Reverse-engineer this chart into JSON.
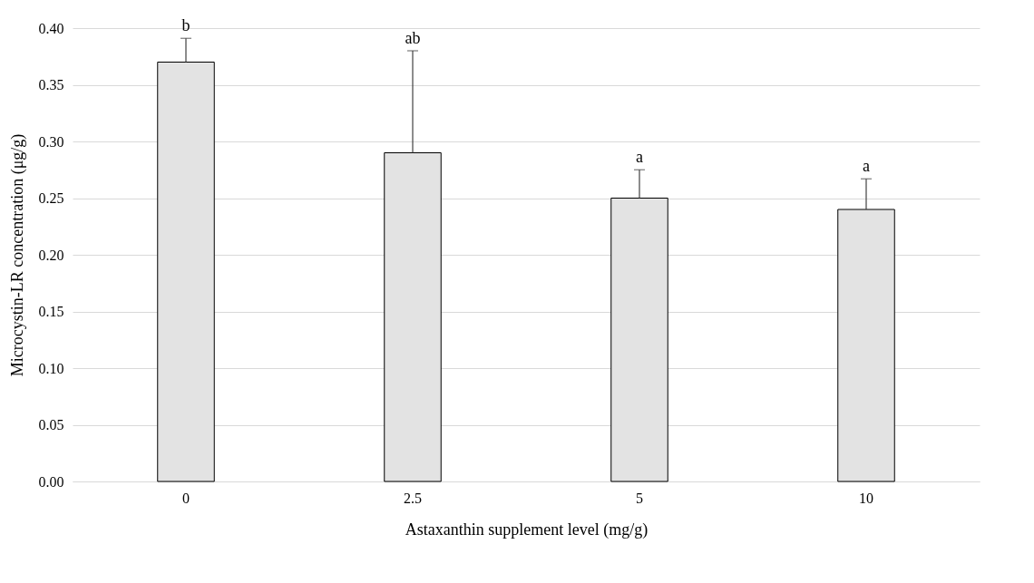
{
  "chart_data": {
    "type": "bar",
    "xlabel": "Astaxanthin supplement level  (mg/g)",
    "ylabel": "Microcystin-LR  concentration  (μg/g)",
    "categories": [
      "0",
      "2.5",
      "5",
      "10"
    ],
    "values": [
      0.37,
      0.29,
      0.25,
      0.24
    ],
    "color": "#e3e3e3",
    "errors": [
      [
        0.37,
        0.391
      ],
      [
        0.29,
        0.38
      ],
      [
        0.25,
        0.275
      ],
      [
        0.24,
        0.267
      ]
    ],
    "ylim": [
      0,
      0.4
    ],
    "yticks": [
      {
        "value": 0,
        "label": "0.00"
      },
      {
        "value": 0.05,
        "label": "0.05"
      },
      {
        "value": 0.1,
        "label": "0.10"
      },
      {
        "value": 0.15,
        "label": "0.15"
      },
      {
        "value": 0.2,
        "label": "0.20"
      },
      {
        "value": 0.25,
        "label": "0.25"
      },
      {
        "value": 0.3,
        "label": "0.30"
      },
      {
        "value": 0.35,
        "label": "0.35"
      },
      {
        "value": 0.4,
        "label": "0.40"
      }
    ],
    "grid": "y",
    "annotations": [
      {
        "text": "b",
        "x": "0",
        "y": 0.391
      },
      {
        "text": "ab",
        "x": "2.5",
        "y": 0.38
      },
      {
        "text": "a",
        "x": "5",
        "y": 0.275
      },
      {
        "text": "a",
        "x": "10",
        "y": 0.267
      }
    ]
  }
}
